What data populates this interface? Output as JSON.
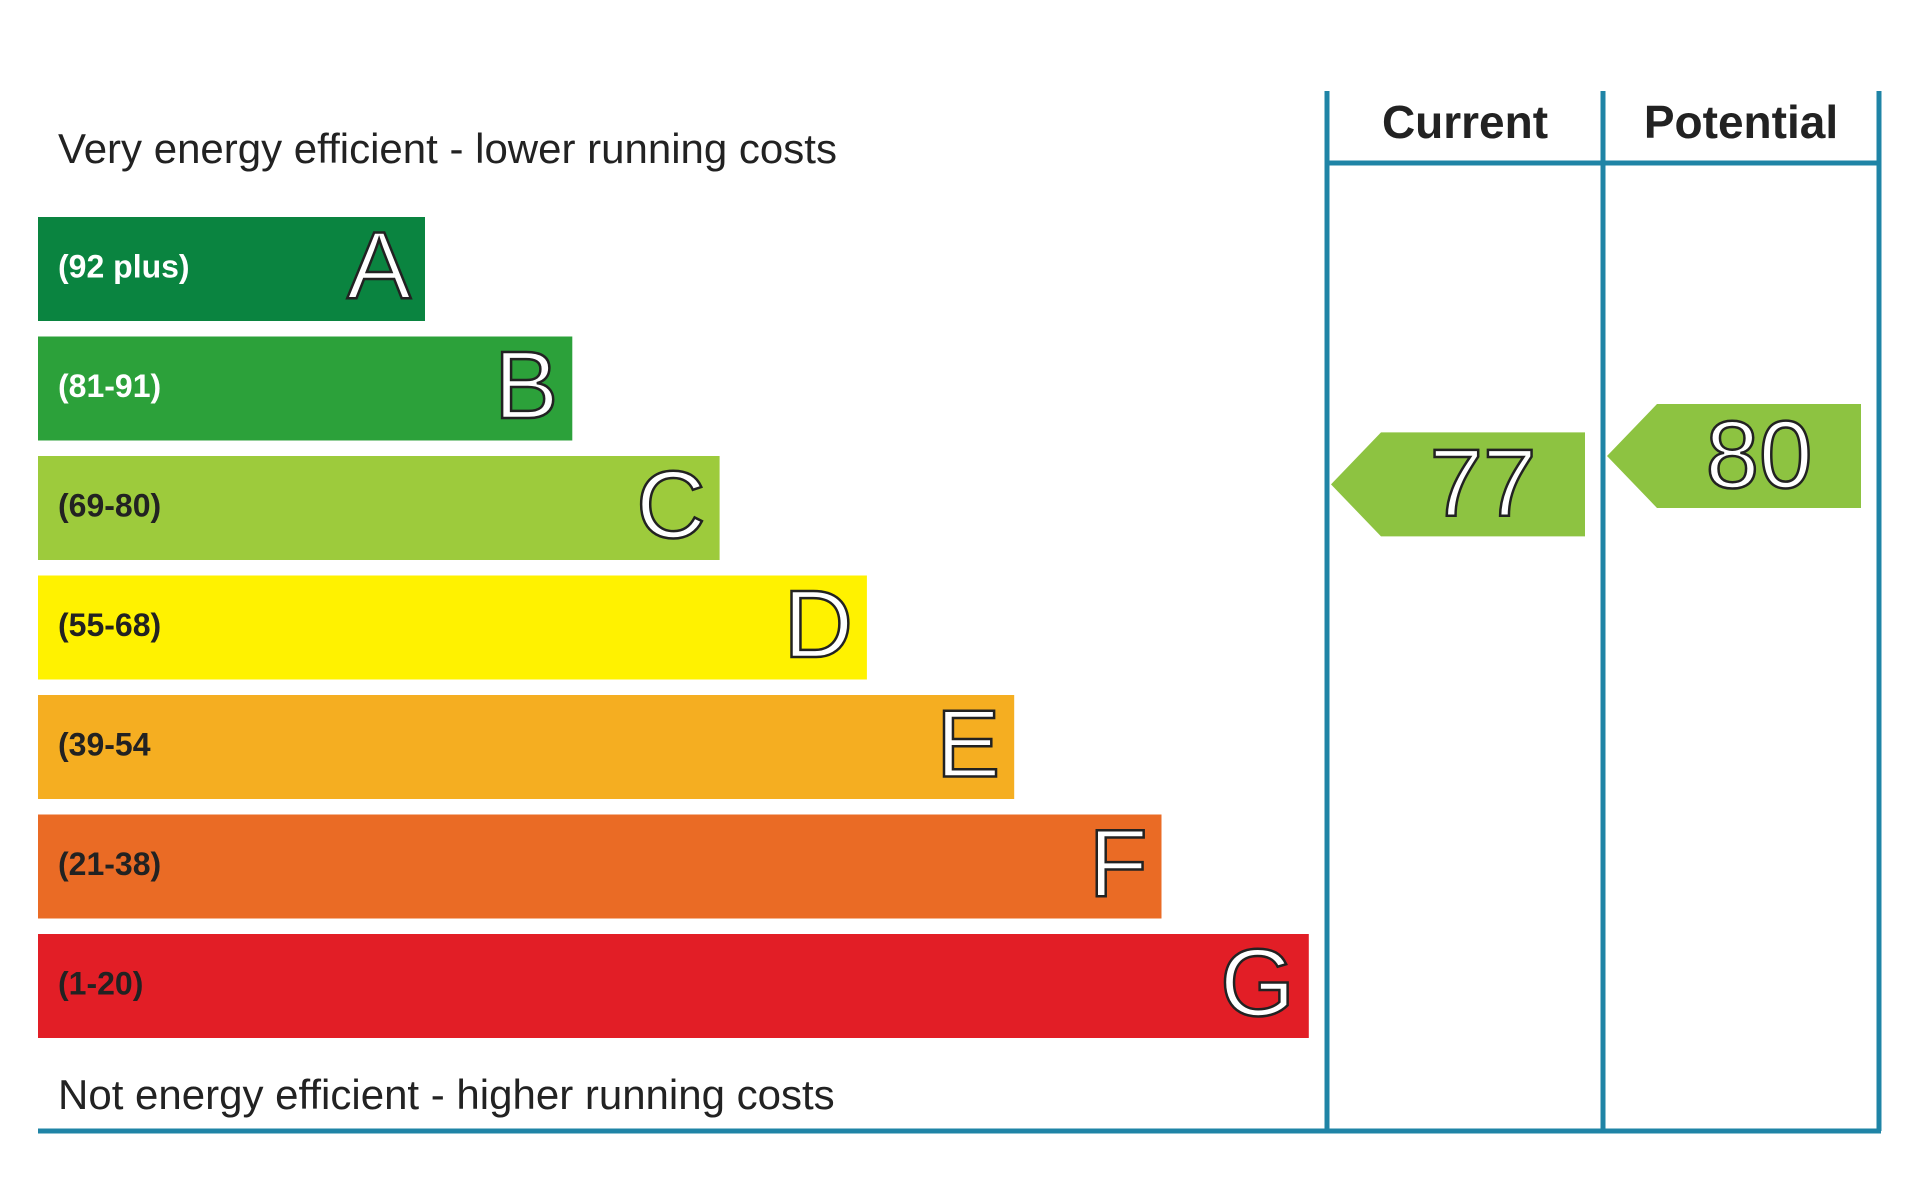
{
  "chart_data": {
    "type": "energy-rating",
    "top_label": "Very energy efficient - lower running costs",
    "bottom_label": "Not energy efficient - higher running costs",
    "bands": [
      {
        "range": "(92 plus)",
        "letter": "A",
        "color": "#0a8440",
        "text_color": "#ffffff"
      },
      {
        "range": "(81-91)",
        "letter": "B",
        "color": "#2ca13a",
        "text_color": "#ffffff"
      },
      {
        "range": "(69-80)",
        "letter": "C",
        "color": "#9dcb3c",
        "text_color": "#222222"
      },
      {
        "range": "(55-68)",
        "letter": "D",
        "color": "#fff200",
        "text_color": "#222222"
      },
      {
        "range": "(39-54",
        "letter": "E",
        "color": "#f5ae21",
        "text_color": "#222222"
      },
      {
        "range": "(21-38)",
        "letter": "F",
        "color": "#ea6b25",
        "text_color": "#222222"
      },
      {
        "range": "(1-20)",
        "letter": "G",
        "color": "#e21e26",
        "text_color": "#222222"
      }
    ],
    "columns": [
      {
        "name": "Current",
        "value": 77,
        "color": "#8dc341"
      },
      {
        "name": "Potential",
        "value": 80,
        "color": "#8dc341"
      }
    ],
    "frame_color": "#1f84a6"
  }
}
